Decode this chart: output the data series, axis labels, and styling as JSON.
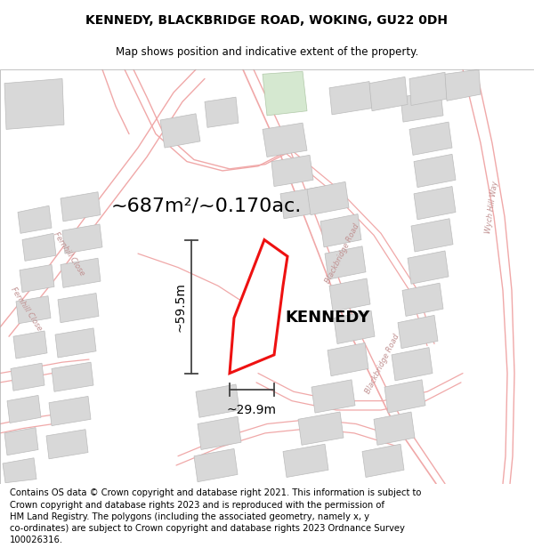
{
  "title": "KENNEDY, BLACKBRIDGE ROAD, WOKING, GU22 0DH",
  "subtitle": "Map shows position and indicative extent of the property.",
  "area_text": "~687m²/~0.170ac.",
  "property_label": "KENNEDY",
  "dim_width": "~29.9m",
  "dim_height": "~59.5m",
  "footer": "Contains OS data © Crown copyright and database right 2021. This information is subject to Crown copyright and database rights 2023 and is reproduced with the permission of HM Land Registry. The polygons (including the associated geometry, namely x, y co-ordinates) are subject to Crown copyright and database rights 2023 Ordnance Survey 100026316.",
  "bg_color": "#ffffff",
  "map_bg": "#ffffff",
  "road_color": "#f0a8a8",
  "road_lw": 0.8,
  "building_color": "#d8d8d8",
  "building_edge": "#bbbbbb",
  "property_fill": "#ffffff",
  "property_color": "#ee1111",
  "property_lw": 2.2,
  "title_fontsize": 10,
  "subtitle_fontsize": 8.5,
  "area_fontsize": 16,
  "label_fontsize": 13,
  "dim_fontsize": 10,
  "road_label_fontsize": 6,
  "footer_fontsize": 7.2
}
